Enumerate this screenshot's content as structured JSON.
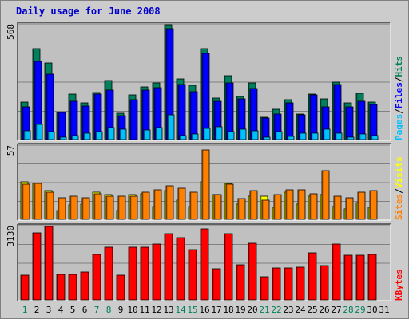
{
  "title": "Daily usage for June 2008",
  "colors": {
    "hits": "#00805c",
    "files": "#0000ff",
    "pages": "#00c0ff",
    "visits": "#ffff00",
    "sites": "#ff8000",
    "kbytes": "#ff0000",
    "weekend": "#00805c",
    "weekday": "#000000",
    "panel_bg": "#c0c0c0",
    "frame_bg": "#cccccc"
  },
  "chart_data": [
    {
      "type": "bar",
      "panel": "hits-files-pages",
      "x": [
        "1",
        "2",
        "3",
        "4",
        "5",
        "6",
        "7",
        "8",
        "9",
        "10",
        "11",
        "12",
        "13",
        "14",
        "15",
        "16",
        "17",
        "18",
        "19",
        "20",
        "21",
        "22",
        "23",
        "24",
        "25",
        "26",
        "27",
        "28",
        "29",
        "30",
        "31"
      ],
      "ymax_label": "568",
      "ylim": [
        0,
        568
      ],
      "legend": [
        {
          "key": "hits",
          "label": "Hits"
        },
        {
          "key": "files",
          "label": "Files"
        },
        {
          "key": "pages",
          "label": "Pages"
        }
      ],
      "series": [
        {
          "name": "Hits",
          "key": "hits",
          "values": [
            185,
            448,
            377,
            136,
            224,
            180,
            233,
            291,
            131,
            222,
            260,
            279,
            568,
            298,
            270,
            450,
            205,
            315,
            214,
            282,
            110,
            148,
            199,
            125,
            224,
            200,
            283,
            180,
            228,
            187,
            0
          ]
        },
        {
          "name": "Files",
          "key": "files",
          "values": [
            160,
            385,
            324,
            136,
            190,
            166,
            226,
            246,
            117,
            198,
            246,
            258,
            550,
            274,
            238,
            427,
            190,
            282,
            200,
            254,
            108,
            128,
            180,
            123,
            222,
            160,
            272,
            161,
            189,
            172,
            0
          ]
        },
        {
          "name": "Pages",
          "key": "pages",
          "values": [
            45,
            76,
            41,
            11,
            18,
            30,
            40,
            58,
            53,
            0,
            48,
            60,
            124,
            21,
            28,
            56,
            64,
            38,
            53,
            42,
            12,
            40,
            14,
            32,
            30,
            52,
            32,
            10,
            26,
            20,
            0
          ]
        }
      ]
    },
    {
      "type": "bar",
      "panel": "visits-sites",
      "x": [
        "1",
        "2",
        "3",
        "4",
        "5",
        "6",
        "7",
        "8",
        "9",
        "10",
        "11",
        "12",
        "13",
        "14",
        "15",
        "16",
        "17",
        "18",
        "19",
        "20",
        "21",
        "22",
        "23",
        "24",
        "25",
        "26",
        "27",
        "28",
        "29",
        "30",
        "31"
      ],
      "ymax_label": "57",
      "ylim": [
        0,
        57
      ],
      "legend": [
        {
          "key": "visits",
          "label": "Visits"
        },
        {
          "key": "sites",
          "label": "Sites"
        }
      ],
      "series": [
        {
          "name": "Visits",
          "key": "visits",
          "values": [
            29,
            28,
            22,
            7,
            11,
            12,
            21,
            19,
            7,
            19,
            20,
            10,
            22,
            15,
            10,
            29,
            19,
            28,
            12,
            18,
            18,
            9,
            21,
            12,
            18,
            19,
            10,
            8,
            13,
            9,
            0
          ]
        },
        {
          "name": "Sites",
          "key": "sites",
          "values": [
            27,
            28,
            21,
            17,
            18,
            17,
            20,
            18,
            18,
            18,
            21,
            23,
            26,
            24,
            21,
            54,
            19,
            27,
            16,
            22,
            15,
            19,
            23,
            23,
            20,
            38,
            18,
            17,
            21,
            22,
            0
          ]
        }
      ]
    },
    {
      "type": "bar",
      "panel": "kbytes",
      "x": [
        "1",
        "2",
        "3",
        "4",
        "5",
        "6",
        "7",
        "8",
        "9",
        "10",
        "11",
        "12",
        "13",
        "14",
        "15",
        "16",
        "17",
        "18",
        "19",
        "20",
        "21",
        "22",
        "23",
        "24",
        "25",
        "26",
        "27",
        "28",
        "29",
        "30",
        "31"
      ],
      "ymax_label": "3130",
      "ylim": [
        0,
        3130
      ],
      "legend": [
        {
          "key": "kbytes",
          "label": "KBytes"
        }
      ],
      "series": [
        {
          "name": "KBytes",
          "key": "kbytes",
          "values": [
            1060,
            2860,
            3130,
            1080,
            1080,
            1200,
            1950,
            2260,
            1060,
            2230,
            2260,
            2390,
            2830,
            2640,
            2130,
            3040,
            1330,
            2830,
            1510,
            2410,
            980,
            1350,
            1360,
            1400,
            2000,
            1450,
            2380,
            1920,
            1920,
            1930,
            0
          ]
        }
      ]
    }
  ]
}
